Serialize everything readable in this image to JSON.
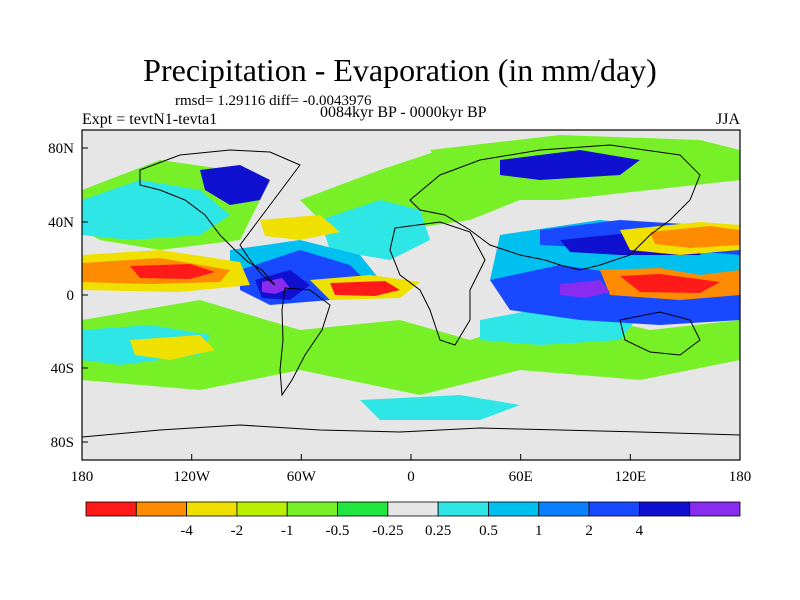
{
  "title": "Precipitation - Evaporation (in mm/day)",
  "stats": "rmsd= 1.29116 diff= -0.0043976",
  "period": "0084kyr BP - 0000kyr BP",
  "experiment": "Expt = tevtN1-tevta1",
  "season": "JJA",
  "axes": {
    "y_ticks": [
      "80N",
      "40N",
      "0",
      "40S",
      "80S"
    ],
    "x_ticks": [
      "180",
      "120W",
      "60W",
      "0",
      "60E",
      "120E",
      "180"
    ]
  },
  "colorbar": {
    "colors": [
      "#ff1a1a",
      "#ff8c00",
      "#f0e000",
      "#b8f000",
      "#78f028",
      "#22e640",
      "#e6e6e6",
      "#2ee6e6",
      "#00c0f0",
      "#0a80ff",
      "#1848ff",
      "#1010d0",
      "#8a2cf0"
    ],
    "labels": [
      "-4",
      "-2",
      "-1",
      "-0.5",
      "-0.25",
      "0.25",
      "0.5",
      "1",
      "2",
      "4"
    ]
  }
}
